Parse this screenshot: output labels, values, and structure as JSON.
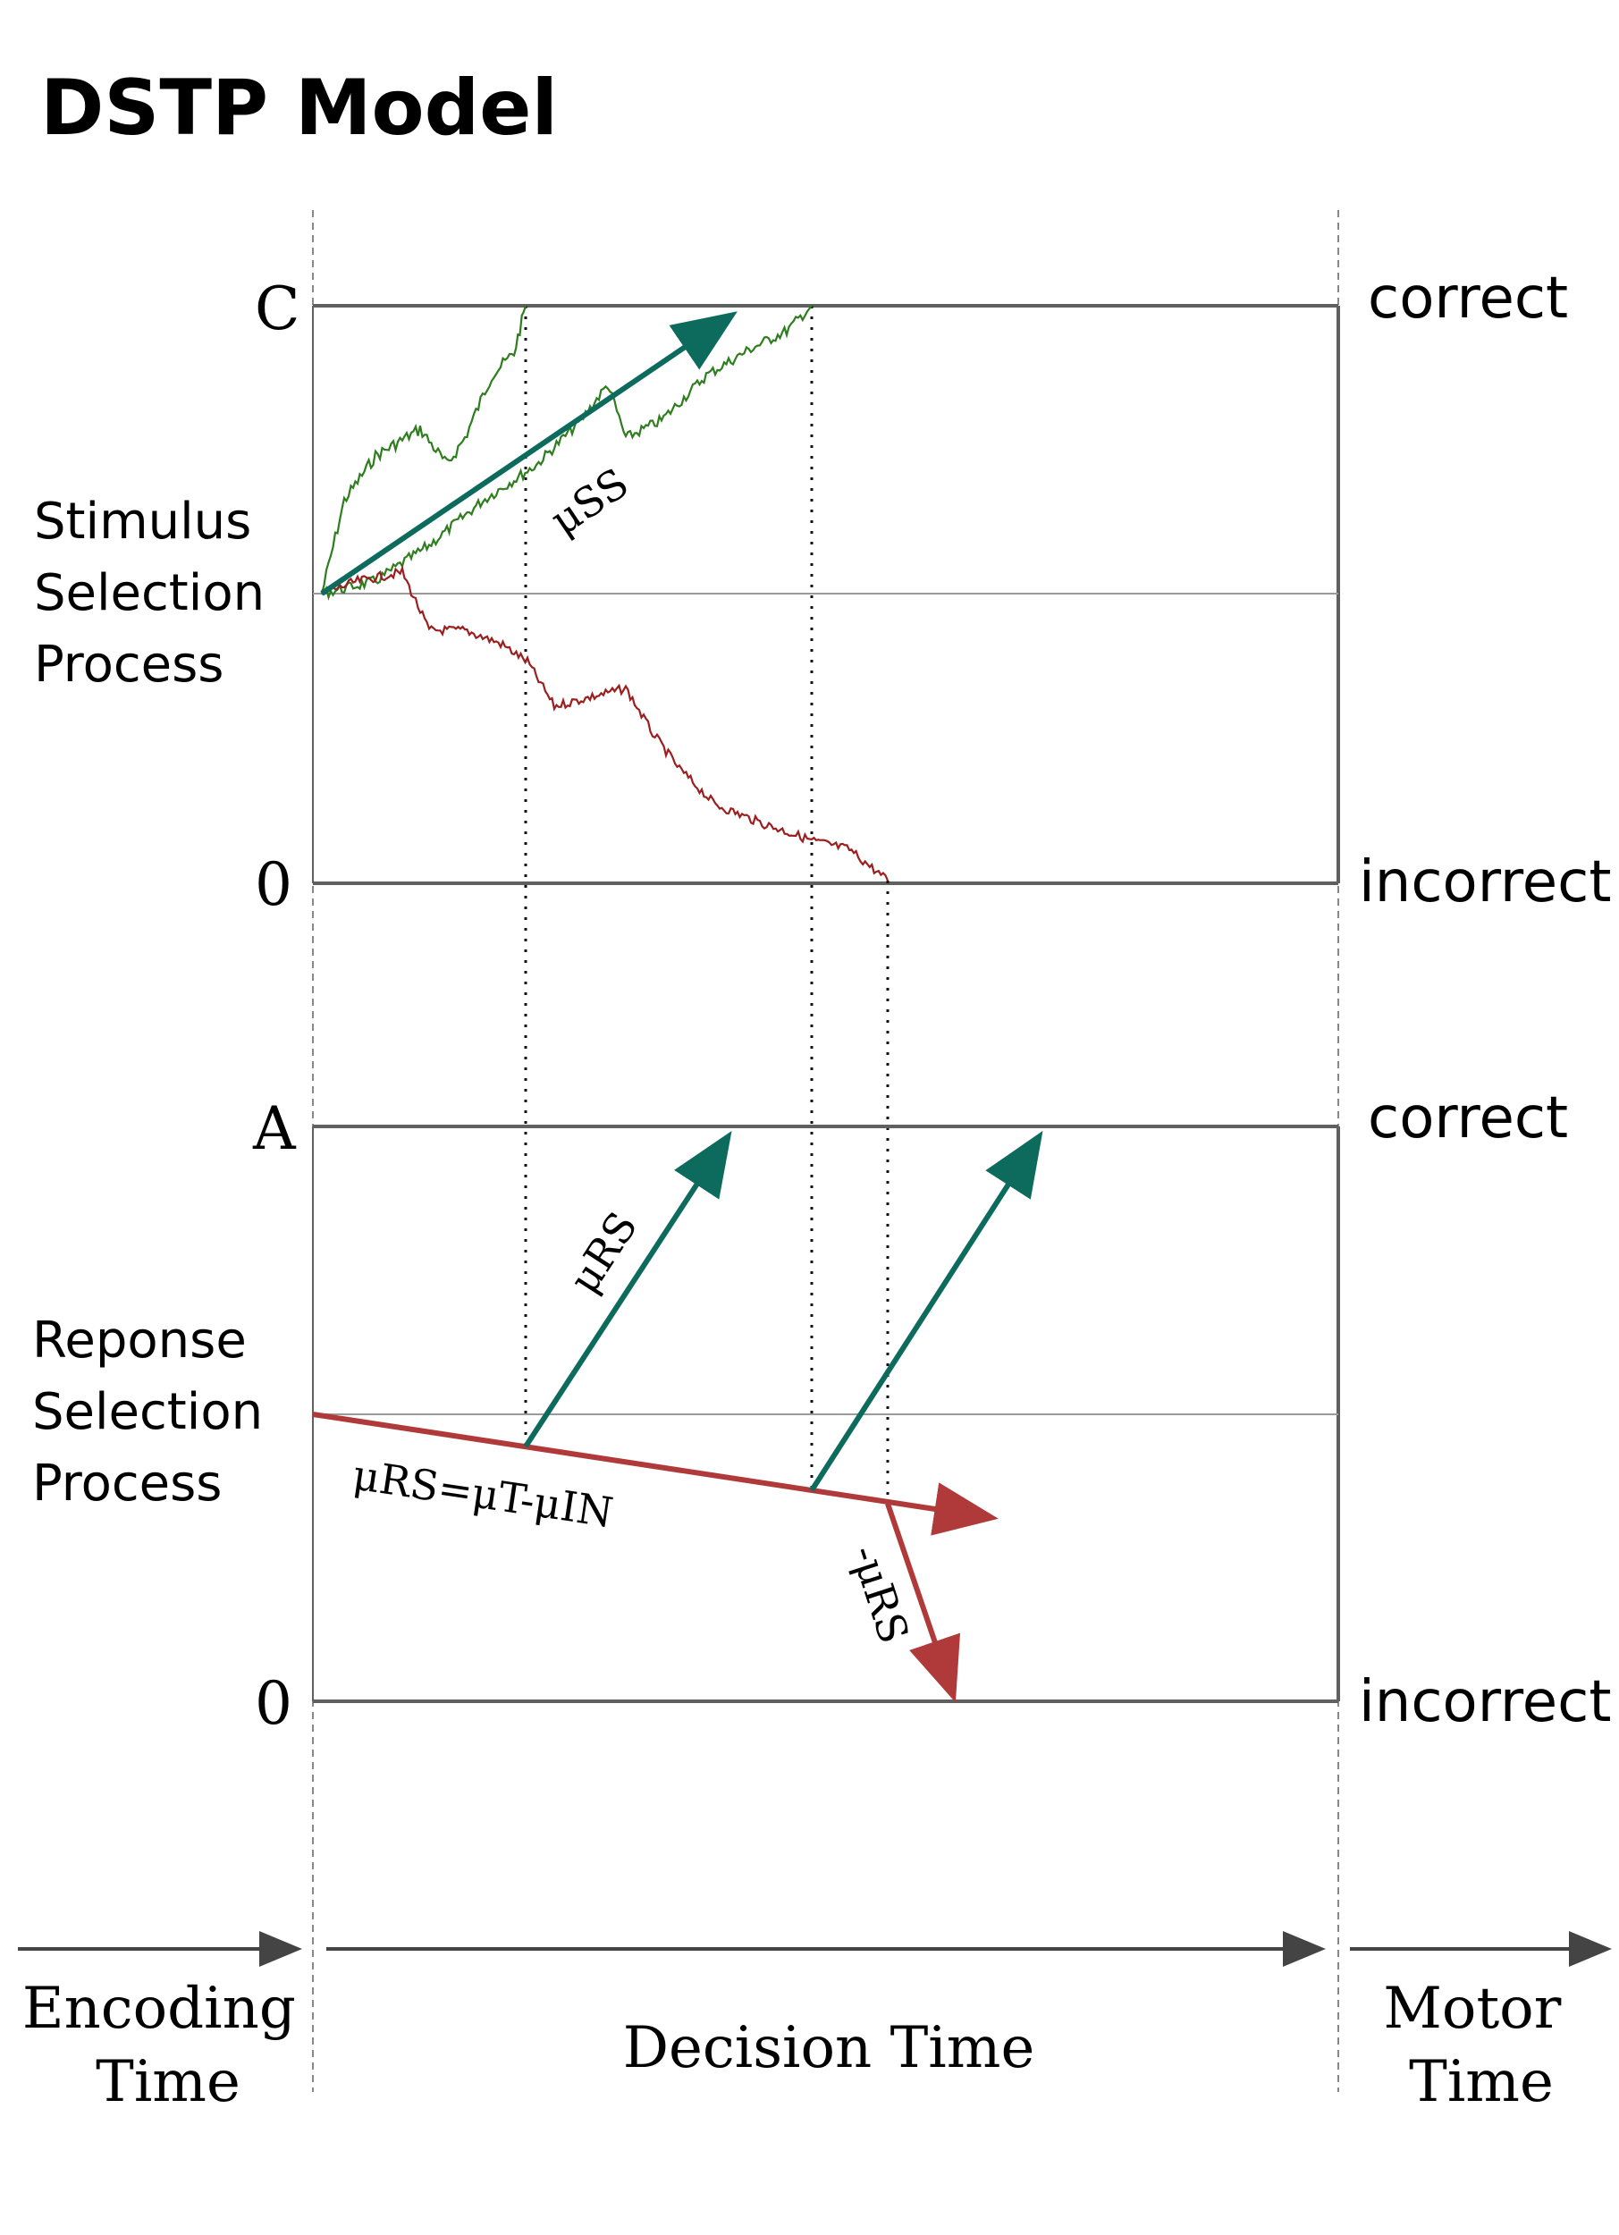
{
  "title": "DSTP Model",
  "stimulus_panel": {
    "process_label": [
      "Stimulus",
      "Selection",
      "Process"
    ],
    "upper_bound": "C",
    "lower_bound": "0",
    "upper_outcome": "correct",
    "lower_outcome": "incorrect",
    "drift_label": "μSS"
  },
  "response_panel": {
    "process_label": [
      "Reponse",
      "Selection",
      "Process"
    ],
    "upper_bound": "A",
    "lower_bound": "0",
    "upper_outcome": "correct",
    "lower_outcome": "incorrect",
    "drift_label_up": "μRS",
    "drift_label_base": "μRS=μT-μIN",
    "drift_label_down": "-μRS"
  },
  "time_axis": {
    "encoding": [
      "Encoding",
      "Time"
    ],
    "decision": "Decision Time",
    "motor": [
      "Motor",
      "Time"
    ]
  },
  "colors": {
    "correct_path": "#2e7d1e",
    "incorrect_path": "#9c1f1f",
    "drift_teal": "#0d6b5e",
    "drift_red": "#b03a3a",
    "frame": "#606060",
    "midline": "#9a9a9a"
  }
}
